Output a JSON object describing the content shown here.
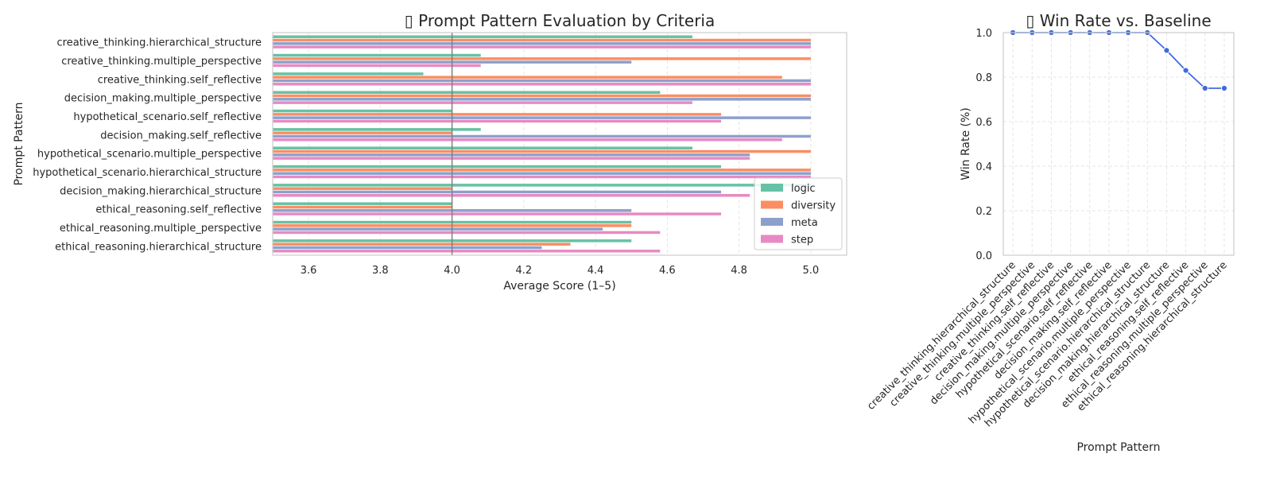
{
  "chart_data": [
    {
      "type": "bar",
      "orientation": "horizontal",
      "title": "▯ Prompt Pattern Evaluation by Criteria",
      "xlabel": "Average Score (1–5)",
      "ylabel": "Prompt Pattern",
      "xlim": [
        3.5,
        5.1
      ],
      "xticks": [
        "3.6",
        "3.8",
        "4.0",
        "4.2",
        "4.4",
        "4.6",
        "4.8",
        "5.0"
      ],
      "reference_line": 4.0,
      "grid": true,
      "legend_position": "lower right",
      "categories": [
        "creative_thinking.hierarchical_structure",
        "creative_thinking.multiple_perspective",
        "creative_thinking.self_reflective",
        "decision_making.multiple_perspective",
        "hypothetical_scenario.self_reflective",
        "decision_making.self_reflective",
        "hypothetical_scenario.multiple_perspective",
        "hypothetical_scenario.hierarchical_structure",
        "decision_making.hierarchical_structure",
        "ethical_reasoning.self_reflective",
        "ethical_reasoning.multiple_perspective",
        "ethical_reasoning.hierarchical_structure"
      ],
      "series": [
        {
          "name": "logic",
          "color": "#66c2a5",
          "values": [
            4.67,
            4.08,
            3.92,
            4.58,
            4.0,
            4.08,
            4.67,
            4.75,
            5.0,
            4.0,
            4.5,
            4.5
          ]
        },
        {
          "name": "diversity",
          "color": "#fc8d62",
          "values": [
            5.0,
            5.0,
            4.92,
            5.0,
            4.75,
            4.0,
            5.0,
            5.0,
            4.0,
            4.0,
            4.5,
            4.33
          ]
        },
        {
          "name": "meta",
          "color": "#8da0cb",
          "values": [
            5.0,
            4.5,
            5.0,
            5.0,
            5.0,
            5.0,
            4.83,
            5.0,
            4.75,
            4.5,
            4.42,
            4.25
          ]
        },
        {
          "name": "step",
          "color": "#e78ac3",
          "values": [
            5.0,
            4.08,
            5.0,
            4.67,
            4.75,
            4.92,
            4.83,
            5.0,
            4.83,
            4.75,
            4.58,
            4.58
          ]
        }
      ]
    },
    {
      "type": "line",
      "title": "▯ Win Rate vs. Baseline",
      "xlabel": "Prompt Pattern",
      "ylabel": "Win Rate (%)",
      "ylim": [
        0.0,
        1.0
      ],
      "yticks": [
        "0.0",
        "0.2",
        "0.4",
        "0.6",
        "0.8",
        "1.0"
      ],
      "grid": true,
      "color": "#4169e1",
      "x": [
        "creative_thinking.hierarchical_structure",
        "creative_thinking.multiple_perspective",
        "creative_thinking.self_reflective",
        "decision_making.multiple_perspective",
        "hypothetical_scenario.self_reflective",
        "decision_making.self_reflective",
        "hypothetical_scenario.multiple_perspective",
        "hypothetical_scenario.hierarchical_structure",
        "decision_making.hierarchical_structure",
        "ethical_reasoning.self_reflective",
        "ethical_reasoning.multiple_perspective",
        "ethical_reasoning.hierarchical_structure"
      ],
      "y": [
        1.0,
        1.0,
        1.0,
        1.0,
        1.0,
        1.0,
        1.0,
        1.0,
        0.92,
        0.83,
        0.75,
        0.75
      ]
    }
  ]
}
